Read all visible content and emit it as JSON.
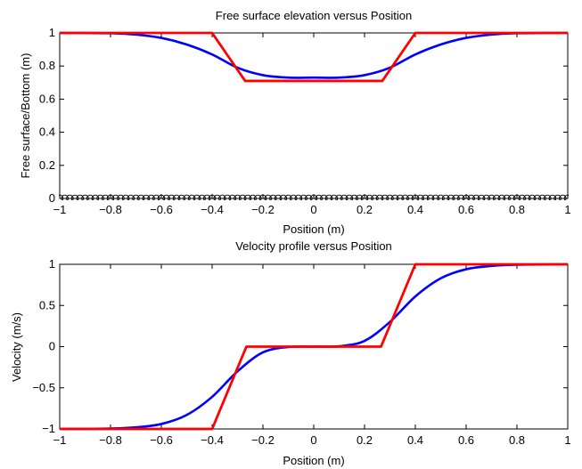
{
  "chart_data": [
    {
      "type": "line",
      "title": "Free surface elevation versus Position",
      "xlabel": "Position (m)",
      "ylabel": "Free surface/Bottom (m)",
      "xlim": [
        -1,
        1
      ],
      "ylim": [
        0,
        1
      ],
      "xticks": [
        "−1",
        "−0.8",
        "−0.6",
        "−0.4",
        "−0.2",
        "0",
        "0.2",
        "0.4",
        "0.6",
        "0.8",
        "1"
      ],
      "yticks": [
        "0",
        "0.2",
        "0.4",
        "0.6",
        "0.8",
        "1"
      ],
      "grid": false,
      "series": [
        {
          "style": "smooth",
          "color": "#0000ff",
          "x": [
            -1,
            -0.8,
            -0.7,
            -0.6,
            -0.5,
            -0.4,
            -0.3,
            -0.2,
            -0.1,
            0,
            0.1,
            0.2,
            0.3,
            0.4,
            0.5,
            0.6,
            0.7,
            0.8,
            1
          ],
          "y": [
            1,
            0.998,
            0.99,
            0.97,
            0.93,
            0.87,
            0.79,
            0.745,
            0.73,
            0.73,
            0.73,
            0.745,
            0.79,
            0.87,
            0.93,
            0.97,
            0.99,
            0.998,
            1
          ]
        },
        {
          "style": "piecewise",
          "color": "#ff0000",
          "x": [
            -1,
            -0.4,
            -0.27,
            0,
            0.27,
            0.4,
            1
          ],
          "y": [
            1,
            1,
            0.71,
            0.71,
            0.71,
            1,
            1
          ]
        },
        {
          "style": "markers",
          "color": "#000000",
          "marker": "circle",
          "x_start": -1,
          "x_end": 1,
          "count": 101,
          "y": 0
        }
      ]
    },
    {
      "type": "line",
      "title": "Velocity profile versus Position",
      "xlabel": "Position (m)",
      "ylabel": "Velocity (m/s)",
      "xlim": [
        -1,
        1
      ],
      "ylim": [
        -1,
        1
      ],
      "xticks": [
        "−1",
        "−0.8",
        "−0.6",
        "−0.4",
        "−0.2",
        "0",
        "0.2",
        "0.4",
        "0.6",
        "0.8",
        "1"
      ],
      "yticks": [
        "−1",
        "−0.5",
        "0",
        "0.5",
        "1"
      ],
      "grid": false,
      "series": [
        {
          "style": "smooth",
          "color": "#0000ff",
          "x": [
            -1,
            -0.8,
            -0.7,
            -0.6,
            -0.5,
            -0.4,
            -0.3,
            -0.2,
            -0.1,
            0,
            0.1,
            0.2,
            0.3,
            0.4,
            0.5,
            0.6,
            0.7,
            0.8,
            1
          ],
          "y": [
            -1,
            -0.995,
            -0.98,
            -0.94,
            -0.83,
            -0.61,
            -0.3,
            -0.07,
            -0.005,
            0,
            0.005,
            0.07,
            0.3,
            0.61,
            0.83,
            0.94,
            0.98,
            0.995,
            1
          ]
        },
        {
          "style": "piecewise",
          "color": "#ff0000",
          "x": [
            -1,
            -0.4,
            -0.265,
            0,
            0.265,
            0.4,
            1
          ],
          "y": [
            -1,
            -1,
            0,
            0,
            0,
            1,
            1
          ]
        }
      ]
    }
  ]
}
